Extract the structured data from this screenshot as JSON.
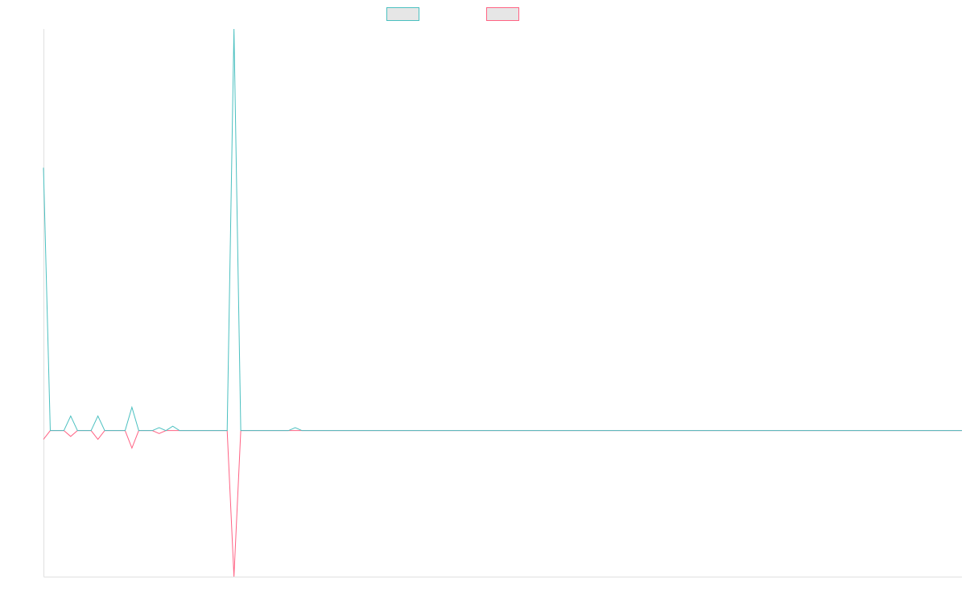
{
  "chart_data": {
    "type": "line",
    "title": "",
    "xlabel": "",
    "ylabel": "",
    "grid": false,
    "legend_position": "top-center",
    "ylim": [
      -1.0,
      2.75
    ],
    "x_count": 136,
    "series": [
      {
        "color": "#4bc0c0",
        "legend_label": "",
        "points": [
          [
            0,
            1.8
          ],
          [
            1,
            0
          ],
          [
            3,
            0
          ],
          [
            4,
            0.1
          ],
          [
            5,
            0
          ],
          [
            7,
            0
          ],
          [
            8,
            0.1
          ],
          [
            9,
            0
          ],
          [
            12,
            0
          ],
          [
            13,
            0.16
          ],
          [
            14,
            0
          ],
          [
            16,
            0
          ],
          [
            17,
            0.02
          ],
          [
            18,
            0
          ],
          [
            19,
            0.03
          ],
          [
            20,
            0
          ],
          [
            27,
            0
          ],
          [
            28,
            2.75
          ],
          [
            29,
            0
          ],
          [
            36,
            0
          ],
          [
            37,
            0.02
          ],
          [
            38,
            0
          ],
          [
            135,
            0
          ]
        ]
      },
      {
        "color": "#ff6384",
        "legend_label": "",
        "points": [
          [
            0,
            -0.06
          ],
          [
            1,
            0
          ],
          [
            3,
            0
          ],
          [
            4,
            -0.04
          ],
          [
            5,
            0
          ],
          [
            7,
            0
          ],
          [
            8,
            -0.06
          ],
          [
            9,
            0
          ],
          [
            12,
            0
          ],
          [
            13,
            -0.12
          ],
          [
            14,
            0
          ],
          [
            16,
            0
          ],
          [
            17,
            -0.02
          ],
          [
            18,
            0
          ],
          [
            27,
            0
          ],
          [
            28,
            -1.0
          ],
          [
            29,
            0
          ],
          [
            135,
            0
          ]
        ]
      }
    ]
  }
}
